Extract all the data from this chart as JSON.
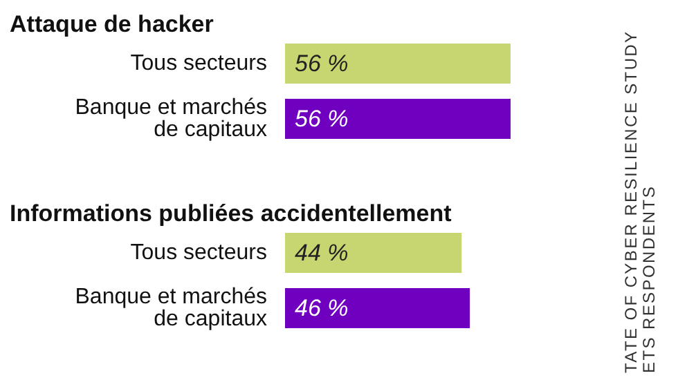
{
  "chart_data": [
    {
      "type": "bar",
      "orientation": "horizontal",
      "title": "Attaque de hacker",
      "categories": [
        "Tous secteurs",
        "Banque et marchés\nde capitaux"
      ],
      "values": [
        56,
        56
      ],
      "colors": [
        "#c8d672",
        "#7000c0"
      ],
      "value_labels": [
        "56 %",
        "56 %"
      ],
      "annotations": [
        "TATE OF CYBER RESILIENCE STUDY",
        "ETS RESPONDENTS"
      ]
    },
    {
      "type": "bar",
      "orientation": "horizontal",
      "title": "Informations publiées accidentellement",
      "categories": [
        "Tous secteurs",
        "Banque et marchés\nde capitaux"
      ],
      "values": [
        44,
        46
      ],
      "colors": [
        "#c8d672",
        "#7000c0"
      ],
      "value_labels": [
        "44 %",
        "46 %"
      ]
    }
  ]
}
